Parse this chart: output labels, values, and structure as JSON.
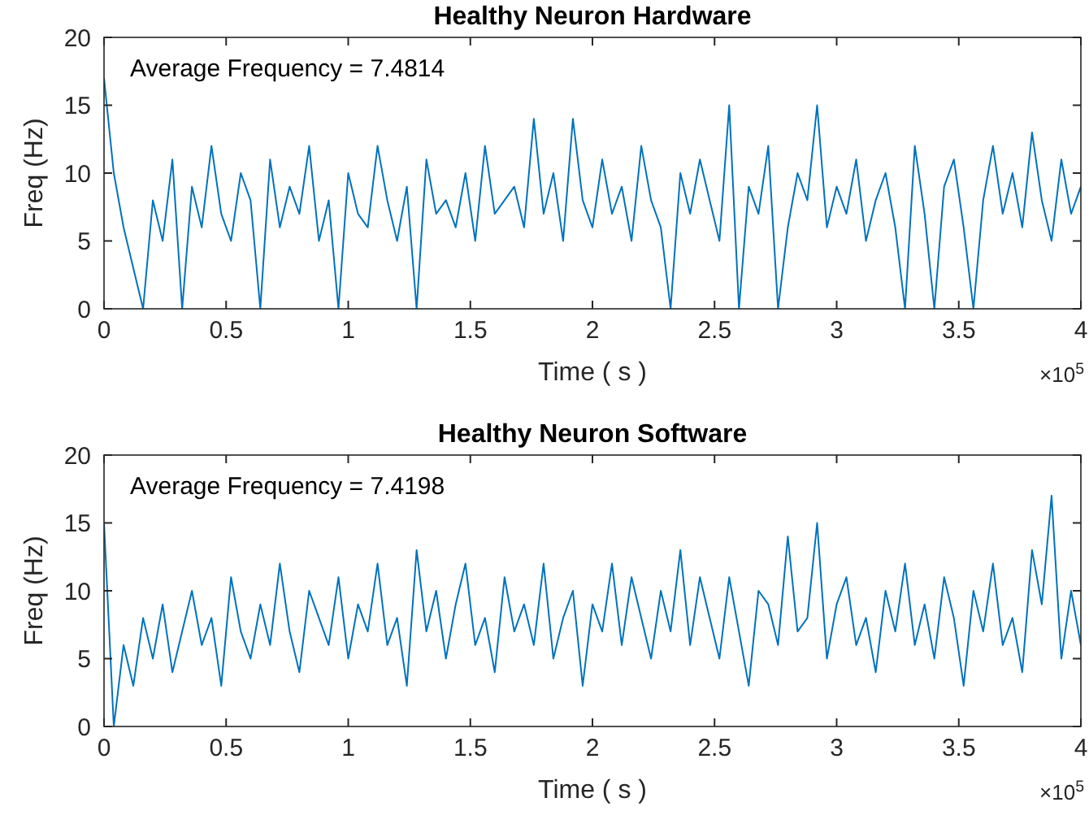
{
  "chart_data": [
    {
      "type": "line",
      "title": "Healthy Neuron Hardware",
      "xlabel": "Time ( s )",
      "ylabel": "Freq (Hz)",
      "annotations": [
        "Average Frequency = 7.4814",
        "×10$^{5}$"
      ],
      "xlim": [
        0,
        4
      ],
      "ylim": [
        0,
        20
      ],
      "xticks": [
        0,
        0.5,
        1,
        1.5,
        2,
        2.5,
        3,
        3.5,
        4
      ],
      "yticks": [
        0,
        5,
        10,
        15,
        20
      ],
      "grid": false,
      "x": [
        0,
        0.04,
        0.08,
        0.12,
        0.16,
        0.2,
        0.24,
        0.28,
        0.32,
        0.36,
        0.4,
        0.44,
        0.48,
        0.52,
        0.56,
        0.6,
        0.64,
        0.68,
        0.72,
        0.76,
        0.8,
        0.84,
        0.88,
        0.92,
        0.96,
        1,
        1.04,
        1.08,
        1.12,
        1.16,
        1.2,
        1.24,
        1.28,
        1.32,
        1.36,
        1.4,
        1.44,
        1.48,
        1.52,
        1.56,
        1.6,
        1.64,
        1.68,
        1.72,
        1.76,
        1.8,
        1.84,
        1.88,
        1.92,
        1.96,
        2,
        2.04,
        2.08,
        2.12,
        2.16,
        2.2,
        2.24,
        2.28,
        2.32,
        2.36,
        2.4,
        2.44,
        2.48,
        2.52,
        2.56,
        2.6,
        2.64,
        2.68,
        2.72,
        2.76,
        2.8,
        2.84,
        2.88,
        2.92,
        2.96,
        3,
        3.04,
        3.08,
        3.12,
        3.16,
        3.2,
        3.24,
        3.28,
        3.32,
        3.36,
        3.4,
        3.44,
        3.48,
        3.52,
        3.56,
        3.6,
        3.64,
        3.68,
        3.72,
        3.76,
        3.8,
        3.84,
        3.88,
        3.92,
        3.96,
        4
      ],
      "series": [
        {
          "color": "#0072bd",
          "values": [
            17,
            10,
            6,
            3,
            0,
            8,
            5,
            11,
            0,
            9,
            6,
            12,
            7,
            5,
            10,
            8,
            0,
            11,
            6,
            9,
            7,
            12,
            5,
            8,
            0,
            10,
            7,
            6,
            12,
            8,
            5,
            9,
            0,
            11,
            7,
            8,
            6,
            10,
            5,
            12,
            7,
            8,
            9,
            6,
            14,
            7,
            10,
            5,
            14,
            8,
            6,
            11,
            7,
            9,
            5,
            12,
            8,
            6,
            0,
            10,
            7,
            11,
            8,
            5,
            15,
            0,
            9,
            7,
            12,
            0,
            6,
            10,
            8,
            15,
            6,
            9,
            7,
            11,
            5,
            8,
            10,
            6,
            0,
            12,
            7,
            0,
            9,
            11,
            6,
            0,
            8,
            12,
            7,
            10,
            6,
            13,
            8,
            5,
            11,
            7,
            9
          ]
        }
      ]
    },
    {
      "type": "line",
      "title": "Healthy Neuron Software",
      "xlabel": "Time ( s )",
      "ylabel": "Freq (Hz)",
      "annotations": [
        "Average Frequency = 7.4198",
        "×10$^{5}$"
      ],
      "xlim": [
        0,
        4
      ],
      "ylim": [
        0,
        20
      ],
      "xticks": [
        0,
        0.5,
        1,
        1.5,
        2,
        2.5,
        3,
        3.5,
        4
      ],
      "yticks": [
        0,
        5,
        10,
        15,
        20
      ],
      "grid": false,
      "x": [
        0,
        0.04,
        0.08,
        0.12,
        0.16,
        0.2,
        0.24,
        0.28,
        0.32,
        0.36,
        0.4,
        0.44,
        0.48,
        0.52,
        0.56,
        0.6,
        0.64,
        0.68,
        0.72,
        0.76,
        0.8,
        0.84,
        0.88,
        0.92,
        0.96,
        1,
        1.04,
        1.08,
        1.12,
        1.16,
        1.2,
        1.24,
        1.28,
        1.32,
        1.36,
        1.4,
        1.44,
        1.48,
        1.52,
        1.56,
        1.6,
        1.64,
        1.68,
        1.72,
        1.76,
        1.8,
        1.84,
        1.88,
        1.92,
        1.96,
        2,
        2.04,
        2.08,
        2.12,
        2.16,
        2.2,
        2.24,
        2.28,
        2.32,
        2.36,
        2.4,
        2.44,
        2.48,
        2.52,
        2.56,
        2.6,
        2.64,
        2.68,
        2.72,
        2.76,
        2.8,
        2.84,
        2.88,
        2.92,
        2.96,
        3,
        3.04,
        3.08,
        3.12,
        3.16,
        3.2,
        3.24,
        3.28,
        3.32,
        3.36,
        3.4,
        3.44,
        3.48,
        3.52,
        3.56,
        3.6,
        3.64,
        3.68,
        3.72,
        3.76,
        3.8,
        3.84,
        3.88,
        3.92,
        3.96,
        4
      ],
      "series": [
        {
          "color": "#0072bd",
          "values": [
            15,
            0,
            6,
            3,
            8,
            5,
            9,
            4,
            7,
            10,
            6,
            8,
            3,
            11,
            7,
            5,
            9,
            6,
            12,
            7,
            4,
            10,
            8,
            6,
            11,
            5,
            9,
            7,
            12,
            6,
            8,
            3,
            13,
            7,
            10,
            5,
            9,
            12,
            6,
            8,
            4,
            11,
            7,
            9,
            6,
            12,
            5,
            8,
            10,
            3,
            9,
            7,
            12,
            6,
            11,
            8,
            5,
            10,
            7,
            13,
            6,
            11,
            8,
            5,
            11,
            7,
            3,
            10,
            9,
            6,
            14,
            7,
            8,
            15,
            5,
            9,
            11,
            6,
            8,
            4,
            10,
            7,
            12,
            6,
            9,
            5,
            11,
            8,
            3,
            10,
            7,
            12,
            6,
            8,
            4,
            13,
            9,
            17,
            5,
            10,
            6
          ]
        }
      ]
    }
  ]
}
